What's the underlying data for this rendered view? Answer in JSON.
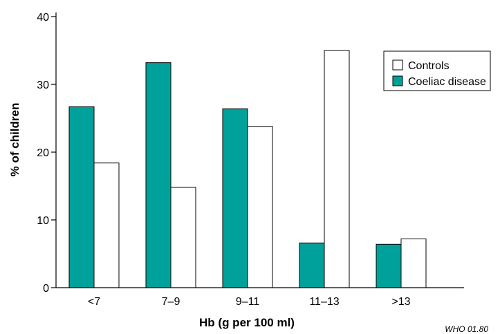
{
  "chart_data": {
    "type": "bar",
    "categories": [
      "<7",
      "7–9",
      "9–11",
      "11–13",
      ">13"
    ],
    "series": [
      {
        "name": "Coeliac disease",
        "values": [
          26.7,
          33.2,
          26.4,
          6.6,
          6.4
        ],
        "color": "#00a19a"
      },
      {
        "name": "Controls",
        "values": [
          18.4,
          14.8,
          23.8,
          35.0,
          7.2
        ],
        "color": "#ffffff"
      }
    ],
    "title": "",
    "xlabel": "Hb (g per 100 ml)",
    "ylabel": "% of children",
    "ylim": [
      0,
      40
    ],
    "yticks": [
      0,
      10,
      20,
      30,
      40
    ],
    "grid": false,
    "legend": {
      "placement": "top-right",
      "entries": [
        "Controls",
        "Coeliac disease"
      ]
    }
  },
  "credit": "WHO 01.80"
}
